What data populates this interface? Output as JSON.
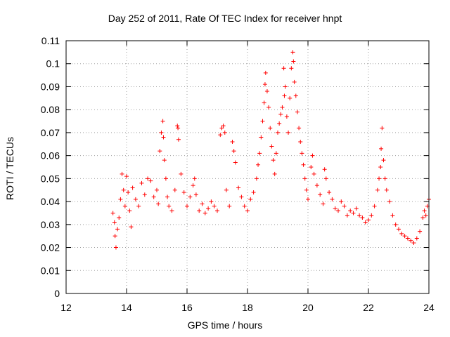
{
  "chart_data": {
    "type": "scatter",
    "title": "Day 252 of 2011, Rate Of TEC Index for receiver hnpt",
    "xlabel": "GPS time / hours",
    "ylabel": "ROTI / TECUs",
    "xlim": [
      12,
      24
    ],
    "ylim": [
      0,
      0.11
    ],
    "xticks": [
      "12",
      "14",
      "16",
      "18",
      "20",
      "22",
      "24"
    ],
    "yticks": [
      "0",
      "0.01",
      "0.02",
      "0.03",
      "0.04",
      "0.05",
      "0.06",
      "0.07",
      "0.08",
      "0.09",
      "0.1",
      "0.11"
    ],
    "grid": true,
    "marker": "+",
    "color": "#ff0000",
    "series": [
      {
        "points": [
          [
            13.55,
            0.035
          ],
          [
            13.6,
            0.031
          ],
          [
            13.62,
            0.025
          ],
          [
            13.65,
            0.02
          ],
          [
            13.7,
            0.028
          ],
          [
            13.75,
            0.033
          ],
          [
            13.8,
            0.041
          ],
          [
            13.85,
            0.052
          ],
          [
            13.9,
            0.045
          ],
          [
            13.95,
            0.038
          ],
          [
            14.0,
            0.051
          ],
          [
            14.05,
            0.044
          ],
          [
            14.1,
            0.036
          ],
          [
            14.15,
            0.029
          ],
          [
            14.2,
            0.046
          ],
          [
            14.3,
            0.041
          ],
          [
            14.4,
            0.038
          ],
          [
            14.5,
            0.048
          ],
          [
            14.6,
            0.043
          ],
          [
            14.7,
            0.05
          ],
          [
            14.8,
            0.049
          ],
          [
            14.9,
            0.042
          ],
          [
            15.0,
            0.045
          ],
          [
            15.05,
            0.039
          ],
          [
            15.1,
            0.062
          ],
          [
            15.15,
            0.07
          ],
          [
            15.2,
            0.075
          ],
          [
            15.22,
            0.068
          ],
          [
            15.25,
            0.058
          ],
          [
            15.3,
            0.05
          ],
          [
            15.35,
            0.042
          ],
          [
            15.4,
            0.038
          ],
          [
            15.5,
            0.036
          ],
          [
            15.6,
            0.045
          ],
          [
            15.68,
            0.073
          ],
          [
            15.7,
            0.072
          ],
          [
            15.72,
            0.067
          ],
          [
            15.8,
            0.052
          ],
          [
            15.9,
            0.044
          ],
          [
            16.0,
            0.038
          ],
          [
            16.1,
            0.042
          ],
          [
            16.2,
            0.047
          ],
          [
            16.25,
            0.05
          ],
          [
            16.3,
            0.043
          ],
          [
            16.4,
            0.036
          ],
          [
            16.5,
            0.039
          ],
          [
            16.6,
            0.035
          ],
          [
            16.7,
            0.037
          ],
          [
            16.8,
            0.04
          ],
          [
            16.9,
            0.038
          ],
          [
            17.0,
            0.036
          ],
          [
            17.1,
            0.069
          ],
          [
            17.15,
            0.072
          ],
          [
            17.2,
            0.073
          ],
          [
            17.25,
            0.07
          ],
          [
            17.3,
            0.045
          ],
          [
            17.4,
            0.038
          ],
          [
            17.5,
            0.066
          ],
          [
            17.55,
            0.062
          ],
          [
            17.6,
            0.057
          ],
          [
            17.7,
            0.046
          ],
          [
            17.8,
            0.042
          ],
          [
            17.9,
            0.038
          ],
          [
            18.0,
            0.036
          ],
          [
            18.1,
            0.041
          ],
          [
            18.2,
            0.044
          ],
          [
            18.3,
            0.05
          ],
          [
            18.35,
            0.056
          ],
          [
            18.4,
            0.061
          ],
          [
            18.45,
            0.068
          ],
          [
            18.5,
            0.075
          ],
          [
            18.55,
            0.083
          ],
          [
            18.58,
            0.091
          ],
          [
            18.6,
            0.096
          ],
          [
            18.65,
            0.088
          ],
          [
            18.7,
            0.081
          ],
          [
            18.75,
            0.072
          ],
          [
            18.8,
            0.064
          ],
          [
            18.85,
            0.058
          ],
          [
            18.9,
            0.052
          ],
          [
            18.95,
            0.061
          ],
          [
            19.0,
            0.07
          ],
          [
            19.05,
            0.074
          ],
          [
            19.1,
            0.078
          ],
          [
            19.15,
            0.081
          ],
          [
            19.2,
            0.098
          ],
          [
            19.22,
            0.086
          ],
          [
            19.25,
            0.09
          ],
          [
            19.3,
            0.077
          ],
          [
            19.35,
            0.07
          ],
          [
            19.4,
            0.085
          ],
          [
            19.45,
            0.098
          ],
          [
            19.5,
            0.105
          ],
          [
            19.52,
            0.101
          ],
          [
            19.55,
            0.092
          ],
          [
            19.6,
            0.086
          ],
          [
            19.65,
            0.079
          ],
          [
            19.7,
            0.072
          ],
          [
            19.75,
            0.066
          ],
          [
            19.8,
            0.061
          ],
          [
            19.85,
            0.056
          ],
          [
            19.9,
            0.05
          ],
          [
            19.95,
            0.045
          ],
          [
            20.0,
            0.041
          ],
          [
            20.1,
            0.055
          ],
          [
            20.15,
            0.06
          ],
          [
            20.2,
            0.052
          ],
          [
            20.3,
            0.047
          ],
          [
            20.4,
            0.043
          ],
          [
            20.5,
            0.039
          ],
          [
            20.55,
            0.054
          ],
          [
            20.6,
            0.05
          ],
          [
            20.7,
            0.044
          ],
          [
            20.8,
            0.041
          ],
          [
            20.9,
            0.037
          ],
          [
            21.0,
            0.036
          ],
          [
            21.1,
            0.04
          ],
          [
            21.2,
            0.038
          ],
          [
            21.3,
            0.034
          ],
          [
            21.4,
            0.036
          ],
          [
            21.5,
            0.035
          ],
          [
            21.6,
            0.037
          ],
          [
            21.7,
            0.034
          ],
          [
            21.8,
            0.033
          ],
          [
            21.9,
            0.031
          ],
          [
            22.0,
            0.032
          ],
          [
            22.1,
            0.034
          ],
          [
            22.2,
            0.038
          ],
          [
            22.3,
            0.045
          ],
          [
            22.35,
            0.05
          ],
          [
            22.4,
            0.055
          ],
          [
            22.42,
            0.063
          ],
          [
            22.45,
            0.072
          ],
          [
            22.5,
            0.058
          ],
          [
            22.55,
            0.05
          ],
          [
            22.6,
            0.045
          ],
          [
            22.7,
            0.04
          ],
          [
            22.8,
            0.034
          ],
          [
            22.9,
            0.03
          ],
          [
            23.0,
            0.028
          ],
          [
            23.1,
            0.026
          ],
          [
            23.2,
            0.025
          ],
          [
            23.3,
            0.024
          ],
          [
            23.4,
            0.023
          ],
          [
            23.5,
            0.022
          ],
          [
            23.6,
            0.024
          ],
          [
            23.7,
            0.027
          ],
          [
            23.8,
            0.033
          ],
          [
            23.85,
            0.036
          ],
          [
            23.9,
            0.034
          ],
          [
            23.95,
            0.038
          ],
          [
            24.0,
            0.041
          ]
        ]
      }
    ]
  }
}
